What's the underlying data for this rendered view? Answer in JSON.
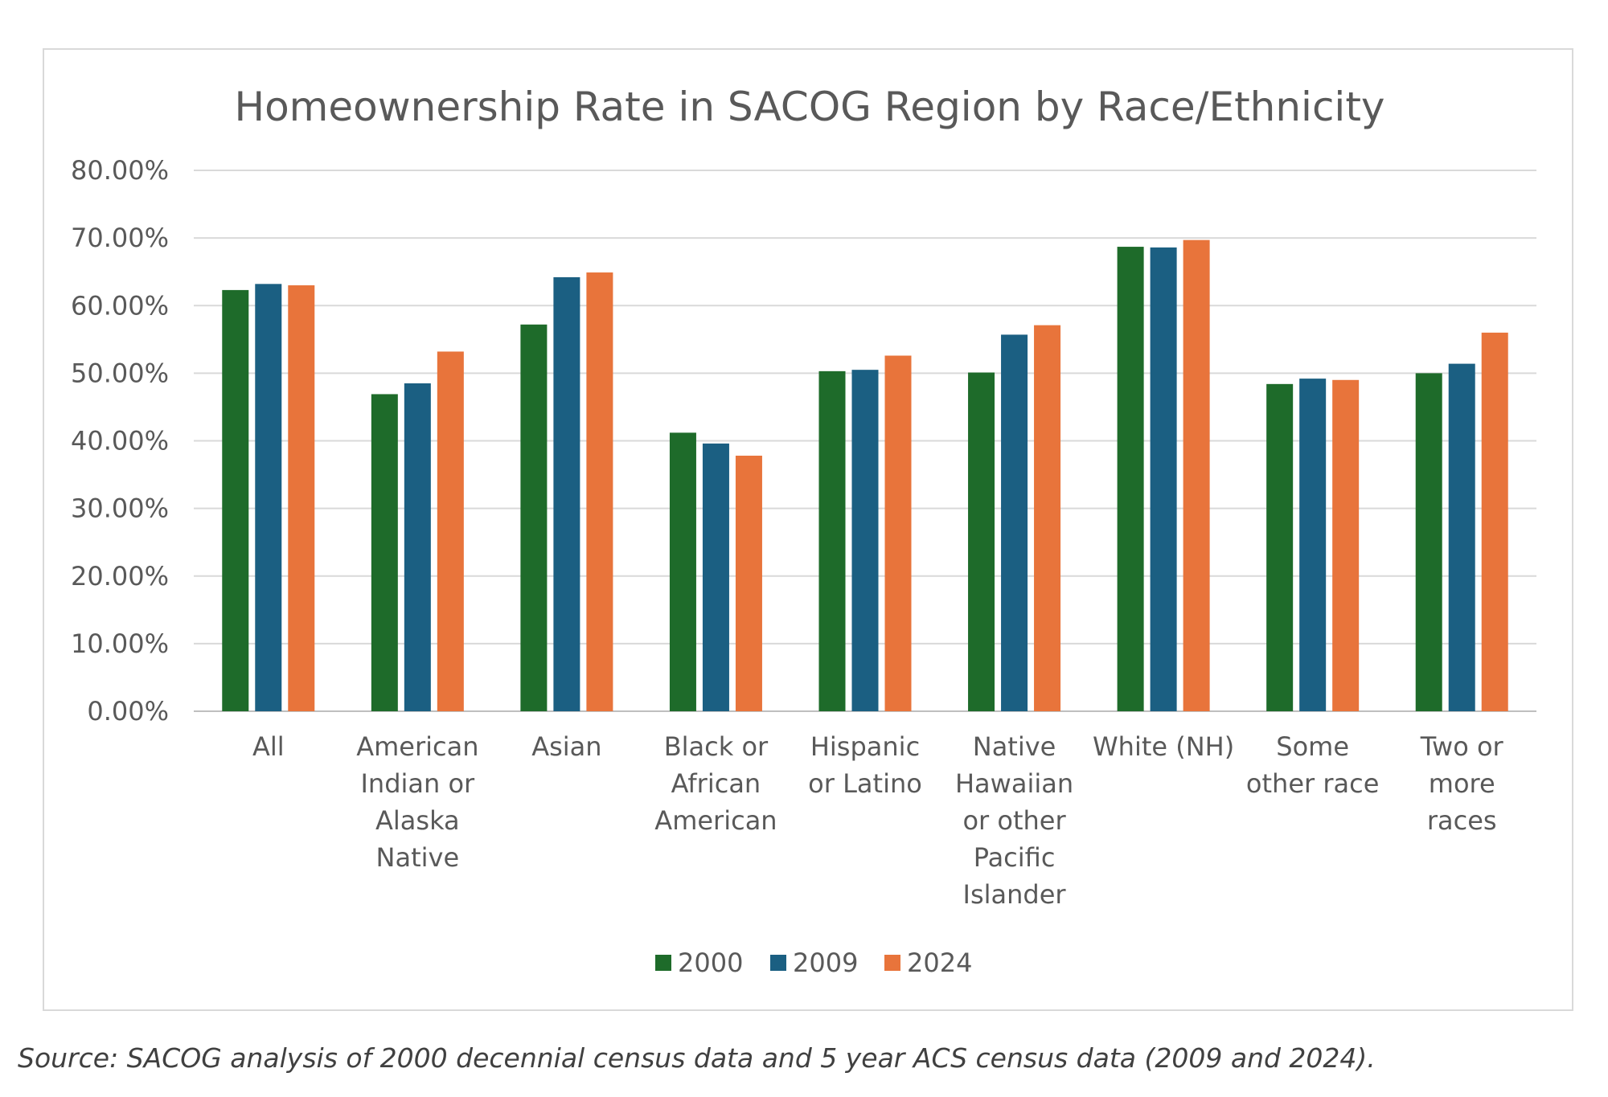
{
  "chart_data": {
    "type": "bar",
    "title": "Homeownership Rate in SACOG Region by Race/Ethnicity",
    "categories": [
      [
        "All"
      ],
      [
        "American",
        "Indian or",
        "Alaska",
        "Native"
      ],
      [
        "Asian"
      ],
      [
        "Black or",
        "African",
        "American"
      ],
      [
        "Hispanic",
        "or Latino"
      ],
      [
        "Native",
        "Hawaiian",
        "or other",
        "Pacific",
        "Islander"
      ],
      [
        "White (NH)"
      ],
      [
        "Some",
        "other race"
      ],
      [
        "Two or",
        "more",
        "races"
      ]
    ],
    "series": [
      {
        "name": "2000",
        "color": "#1e6b2a",
        "values": [
          62.3,
          46.9,
          57.2,
          41.2,
          50.3,
          50.1,
          68.7,
          48.4,
          50.0
        ]
      },
      {
        "name": "2009",
        "color": "#1b5f82",
        "values": [
          63.2,
          48.5,
          64.2,
          39.6,
          50.5,
          55.7,
          68.6,
          49.2,
          51.4
        ]
      },
      {
        "name": "2024",
        "color": "#e8743b",
        "values": [
          63.0,
          53.2,
          64.9,
          37.8,
          52.6,
          57.1,
          69.7,
          49.0,
          56.0
        ]
      }
    ],
    "yticks": [
      "0.00%",
      "10.00%",
      "20.00%",
      "30.00%",
      "40.00%",
      "50.00%",
      "60.00%",
      "70.00%",
      "80.00%"
    ],
    "ylim": [
      0,
      80
    ],
    "xlabel": "",
    "ylabel": "",
    "grid": true,
    "legend_position": "bottom"
  },
  "source_note": "Source: SACOG analysis of 2000 decennial census data and 5 year ACS census data (2009 and 2024)."
}
